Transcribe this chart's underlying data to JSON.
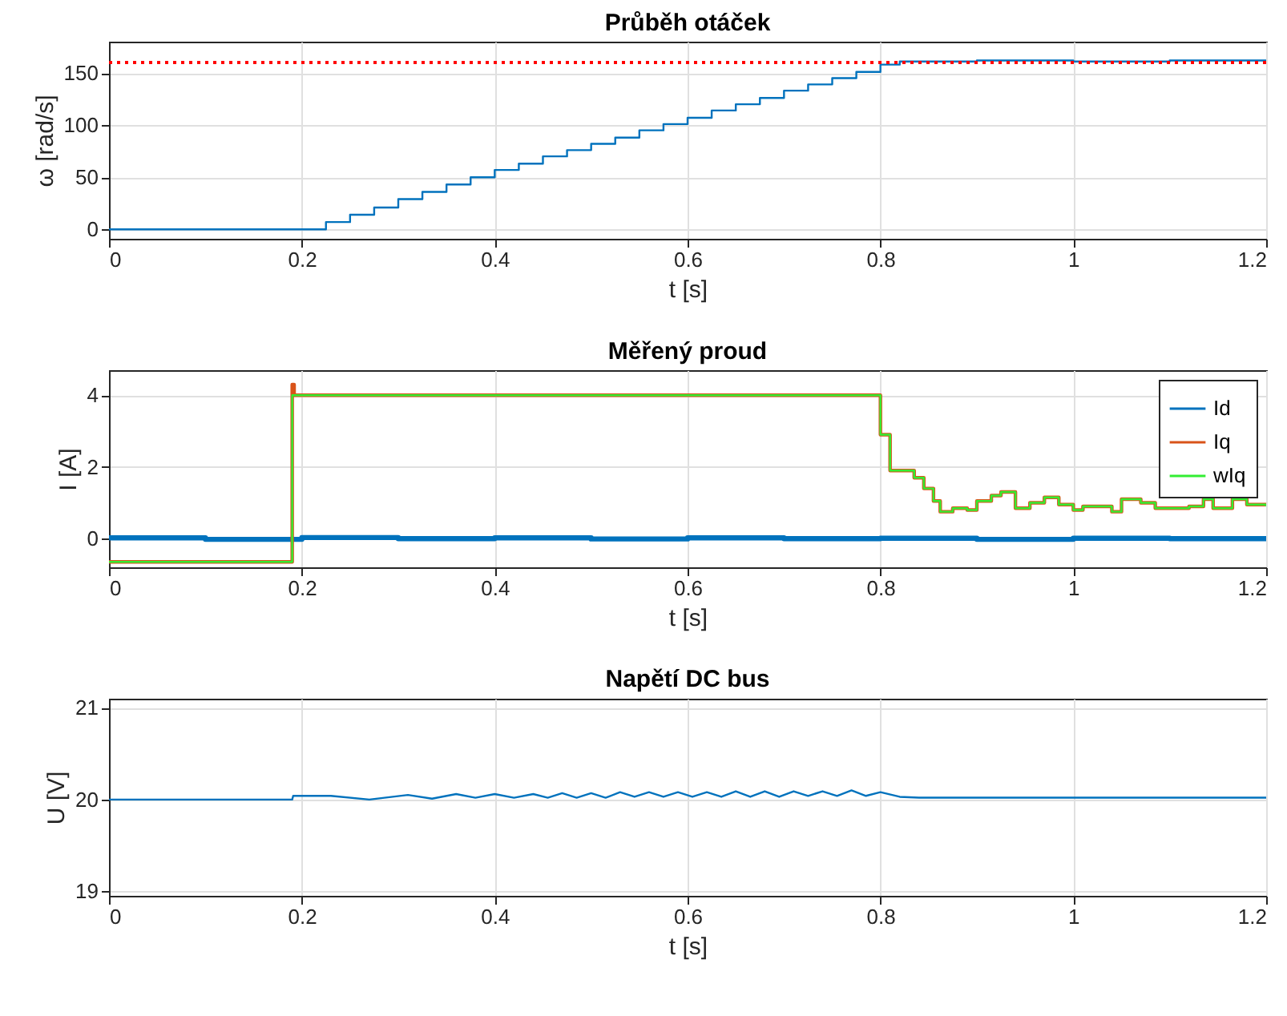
{
  "chart_data": [
    {
      "type": "step",
      "title": "Průběh otáček",
      "xlabel": "t [s]",
      "ylabel": "ω [rad/s]",
      "xlim": [
        0,
        1.2
      ],
      "xticks": [
        0,
        0.2,
        0.4,
        0.6,
        0.8,
        1,
        1.2
      ],
      "ylim": [
        -9,
        180
      ],
      "yticks": [
        0,
        50,
        100,
        150
      ],
      "grid": true,
      "legend": false,
      "ref_lines": [
        {
          "axis": "y",
          "value": 160,
          "color": "#ff0000",
          "line_style": "dotted"
        }
      ],
      "series": [
        {
          "color": "#0072bd",
          "x": [
            0,
            0.2,
            0.225,
            0.25,
            0.275,
            0.3,
            0.325,
            0.35,
            0.375,
            0.4,
            0.425,
            0.45,
            0.475,
            0.5,
            0.525,
            0.55,
            0.575,
            0.6,
            0.625,
            0.65,
            0.675,
            0.7,
            0.725,
            0.75,
            0.775,
            0.8,
            0.82,
            0.9,
            1.0,
            1.1,
            1.2
          ],
          "values": [
            0,
            0,
            7,
            14,
            21,
            29,
            36,
            43,
            50,
            57,
            63,
            70,
            76,
            82,
            88,
            95,
            101,
            107,
            114,
            120,
            126,
            133,
            139,
            145,
            151,
            158,
            161,
            162,
            161,
            162,
            161
          ]
        }
      ]
    },
    {
      "type": "step",
      "title": "Měřený proud",
      "xlabel": "t [s]",
      "ylabel": "I [A]",
      "xlim": [
        0,
        1.2
      ],
      "xticks": [
        0,
        0.2,
        0.4,
        0.6,
        0.8,
        1,
        1.2
      ],
      "ylim": [
        -0.8,
        4.7
      ],
      "yticks": [
        0,
        2,
        4
      ],
      "grid": true,
      "legend": "top right",
      "series": [
        {
          "name": "Id",
          "color": "#0072bd",
          "x": [
            0,
            0.1,
            0.2,
            0.3,
            0.4,
            0.5,
            0.6,
            0.7,
            0.8,
            0.9,
            1.0,
            1.1,
            1.2
          ],
          "values": [
            0.02,
            -0.02,
            0.03,
            0.0,
            0.02,
            -0.01,
            0.02,
            0.0,
            0.01,
            -0.02,
            0.01,
            0.0,
            -0.01
          ]
        },
        {
          "name": "Iq",
          "color": "#d95319",
          "x": [
            0,
            0.19,
            0.192,
            0.8,
            0.81,
            0.835,
            0.845,
            0.855,
            0.862,
            0.875,
            0.89,
            0.9,
            0.915,
            0.925,
            0.94,
            0.955,
            0.97,
            0.985,
            1.0,
            1.01,
            1.04,
            1.05,
            1.07,
            1.085,
            1.12,
            1.135,
            1.145,
            1.165,
            1.18,
            1.2
          ],
          "values": [
            -0.65,
            4.3,
            4.0,
            2.9,
            1.9,
            1.7,
            1.4,
            1.05,
            0.75,
            0.85,
            0.8,
            1.05,
            1.2,
            1.3,
            0.85,
            1.0,
            1.15,
            0.95,
            0.8,
            0.9,
            0.75,
            1.1,
            1.0,
            0.85,
            0.9,
            1.1,
            0.85,
            1.1,
            0.95,
            0.9
          ]
        },
        {
          "name": "wIq",
          "color": "#33ee33",
          "x": [
            0,
            0.19,
            0.8,
            0.81,
            0.835,
            0.845,
            0.855,
            0.862,
            0.875,
            0.89,
            0.9,
            0.915,
            0.925,
            0.94,
            0.955,
            0.97,
            0.985,
            1.0,
            1.01,
            1.04,
            1.05,
            1.07,
            1.085,
            1.12,
            1.135,
            1.145,
            1.165,
            1.18,
            1.2
          ],
          "values": [
            -0.65,
            4.0,
            2.9,
            1.9,
            1.7,
            1.4,
            1.05,
            0.75,
            0.85,
            0.8,
            1.05,
            1.2,
            1.3,
            0.85,
            1.0,
            1.15,
            0.95,
            0.8,
            0.9,
            0.75,
            1.1,
            1.0,
            0.85,
            0.9,
            1.1,
            0.85,
            1.1,
            0.95,
            0.9
          ]
        }
      ]
    },
    {
      "type": "line",
      "title": "Napětí DC bus",
      "xlabel": "t [s]",
      "ylabel": "U [V]",
      "xlim": [
        0,
        1.2
      ],
      "xticks": [
        0,
        0.2,
        0.4,
        0.6,
        0.8,
        1,
        1.2
      ],
      "ylim": [
        18.95,
        21.1
      ],
      "yticks": [
        19,
        20,
        21
      ],
      "grid": true,
      "legend": false,
      "series": [
        {
          "color": "#0072bd",
          "x": [
            0,
            0.19,
            0.191,
            0.23,
            0.27,
            0.31,
            0.335,
            0.36,
            0.38,
            0.4,
            0.42,
            0.44,
            0.455,
            0.47,
            0.485,
            0.5,
            0.515,
            0.53,
            0.545,
            0.56,
            0.575,
            0.59,
            0.605,
            0.62,
            0.635,
            0.65,
            0.665,
            0.68,
            0.695,
            0.71,
            0.725,
            0.74,
            0.755,
            0.77,
            0.785,
            0.8,
            0.82,
            0.84,
            0.9,
            1.0,
            1.1,
            1.2
          ],
          "values": [
            20.0,
            20.0,
            20.04,
            20.04,
            20.0,
            20.05,
            20.01,
            20.06,
            20.02,
            20.06,
            20.02,
            20.06,
            20.02,
            20.07,
            20.02,
            20.07,
            20.02,
            20.08,
            20.03,
            20.08,
            20.03,
            20.08,
            20.03,
            20.08,
            20.03,
            20.09,
            20.03,
            20.09,
            20.03,
            20.09,
            20.04,
            20.09,
            20.04,
            20.1,
            20.04,
            20.08,
            20.03,
            20.02,
            20.02,
            20.02,
            20.02,
            20.02
          ]
        }
      ]
    }
  ]
}
